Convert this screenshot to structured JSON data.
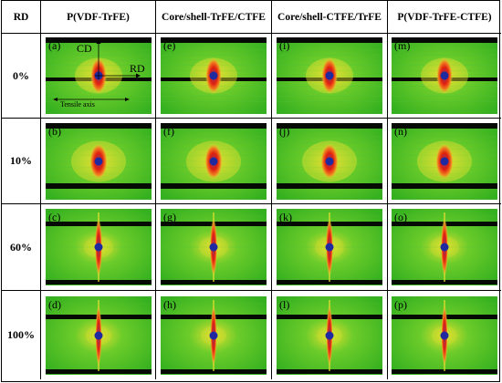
{
  "header": {
    "corner": "RD",
    "columns": [
      "P(VDF-TrFE)",
      "Core/shell-TrFE/CTFE",
      "Core/shell-CTFE/TrFE",
      "P(VDF-TrFE-CTFE)"
    ]
  },
  "rows": [
    {
      "label": "0%",
      "panels": [
        "(a)",
        "(e)",
        "(i)",
        "(m)"
      ]
    },
    {
      "label": "10%",
      "panels": [
        "(b)",
        "(f)",
        "(j)",
        "(n)"
      ]
    },
    {
      "label": "60%",
      "panels": [
        "(c)",
        "(g)",
        "(k)",
        "(o)"
      ]
    },
    {
      "label": "100%",
      "panels": [
        "(d)",
        "(h)",
        "(l)",
        "(p)"
      ]
    }
  ],
  "annotations": {
    "cd": "CD",
    "rd": "RD",
    "tensile_axis": "Tensile axis"
  },
  "colors": {
    "background_green": "#35b020",
    "halo_yellow": "#e4e030",
    "ring_red": "#e02010",
    "beamstop_blue": "#202aa0",
    "shadow_bar": "#050a05"
  }
}
